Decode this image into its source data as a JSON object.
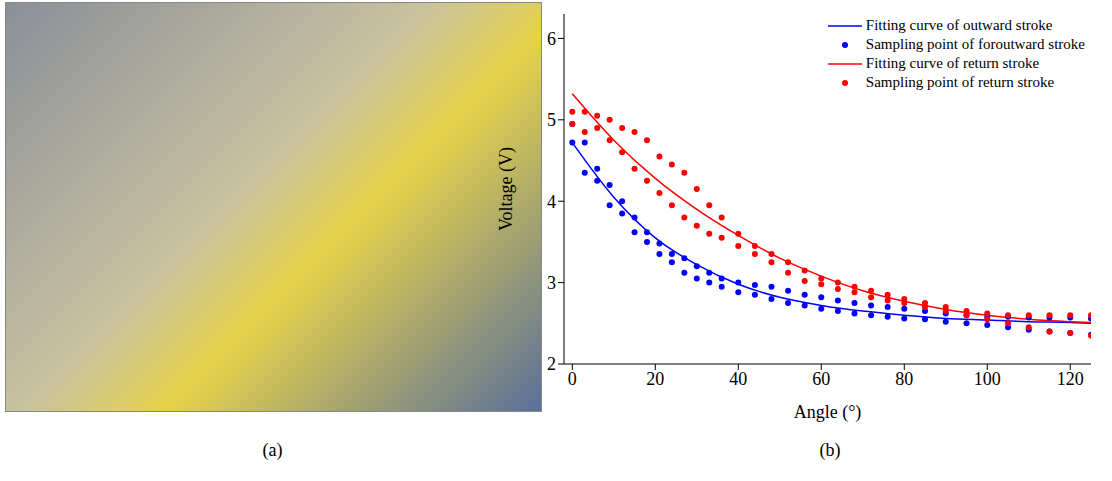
{
  "panel_labels": [
    "(a)",
    "(b)"
  ],
  "chart_data": {
    "type": "scatter",
    "x_label": "Angle (°)",
    "y_label": "Voltage (V)",
    "xlim": [
      -2,
      125
    ],
    "xticks": [
      0,
      20,
      40,
      60,
      80,
      100,
      120
    ],
    "ylim": [
      2,
      6.3
    ],
    "yticks": [
      2,
      3,
      4,
      5,
      6
    ],
    "grid": false,
    "legend": "upper right",
    "series": [
      {
        "name": "Fitting curve of outward stroke",
        "type": "line",
        "color": "#0000ff",
        "line_style": "solid",
        "x": [
          0,
          10,
          20,
          30,
          40,
          50,
          60,
          70,
          80,
          90,
          100,
          110,
          120,
          125
        ],
        "values": [
          4.72,
          4.05,
          3.55,
          3.22,
          2.98,
          2.82,
          2.72,
          2.65,
          2.6,
          2.56,
          2.54,
          2.52,
          2.51,
          2.5
        ]
      },
      {
        "name": "Sampling point of foroutward stroke",
        "type": "scatter",
        "color": "#0000ff",
        "marker": "circle",
        "x": [
          0,
          0,
          3,
          3,
          6,
          6,
          9,
          9,
          12,
          12,
          15,
          15,
          18,
          18,
          21,
          21,
          24,
          24,
          27,
          27,
          30,
          30,
          33,
          33,
          36,
          36,
          40,
          40,
          44,
          44,
          48,
          48,
          52,
          52,
          56,
          56,
          60,
          60,
          64,
          64,
          68,
          68,
          72,
          72,
          76,
          76,
          80,
          80,
          85,
          85,
          90,
          90,
          95,
          95,
          100,
          100,
          105,
          105,
          110,
          110,
          115,
          115,
          120,
          120,
          125,
          125
        ],
        "values": [
          4.95,
          4.72,
          4.72,
          4.35,
          4.4,
          4.25,
          4.2,
          3.95,
          4.0,
          3.85,
          3.8,
          3.62,
          3.62,
          3.5,
          3.48,
          3.35,
          3.35,
          3.25,
          3.3,
          3.12,
          3.2,
          3.05,
          3.12,
          3.0,
          3.05,
          2.95,
          3.0,
          2.88,
          2.97,
          2.85,
          2.95,
          2.8,
          2.9,
          2.75,
          2.85,
          2.72,
          2.82,
          2.68,
          2.78,
          2.65,
          2.75,
          2.62,
          2.72,
          2.6,
          2.7,
          2.58,
          2.68,
          2.56,
          2.65,
          2.55,
          2.62,
          2.52,
          2.6,
          2.5,
          2.58,
          2.48,
          2.58,
          2.45,
          2.57,
          2.42,
          2.57,
          2.4,
          2.57,
          2.38,
          2.56,
          2.36
        ]
      },
      {
        "name": "Fitting curve of return stroke",
        "type": "line",
        "color": "#ff0000",
        "line_style": "solid",
        "x": [
          0,
          10,
          20,
          30,
          40,
          50,
          60,
          70,
          80,
          90,
          100,
          110,
          120,
          125
        ],
        "values": [
          5.32,
          4.75,
          4.28,
          3.9,
          3.58,
          3.3,
          3.08,
          2.9,
          2.77,
          2.67,
          2.6,
          2.55,
          2.52,
          2.51
        ]
      },
      {
        "name": "Sampling point of return stroke",
        "type": "scatter",
        "color": "#ff0000",
        "marker": "circle",
        "x": [
          0,
          0,
          3,
          3,
          6,
          6,
          9,
          9,
          12,
          12,
          15,
          15,
          18,
          18,
          21,
          21,
          24,
          24,
          27,
          27,
          30,
          30,
          33,
          33,
          36,
          36,
          40,
          40,
          44,
          44,
          48,
          48,
          52,
          52,
          56,
          56,
          60,
          60,
          64,
          64,
          68,
          68,
          72,
          72,
          76,
          76,
          80,
          80,
          85,
          85,
          90,
          90,
          95,
          95,
          100,
          100,
          105,
          105,
          110,
          110,
          115,
          115,
          120,
          120,
          125,
          125
        ],
        "values": [
          5.1,
          4.95,
          5.1,
          4.85,
          5.05,
          4.9,
          5.0,
          4.75,
          4.9,
          4.6,
          4.85,
          4.4,
          4.75,
          4.25,
          4.55,
          4.1,
          4.45,
          3.95,
          4.35,
          3.8,
          4.15,
          3.7,
          3.95,
          3.6,
          3.8,
          3.55,
          3.6,
          3.45,
          3.45,
          3.35,
          3.35,
          3.25,
          3.25,
          3.12,
          3.15,
          3.02,
          3.05,
          2.98,
          3.0,
          2.92,
          2.95,
          2.88,
          2.9,
          2.82,
          2.85,
          2.78,
          2.8,
          2.75,
          2.75,
          2.7,
          2.7,
          2.65,
          2.65,
          2.6,
          2.62,
          2.55,
          2.6,
          2.5,
          2.6,
          2.45,
          2.6,
          2.4,
          2.6,
          2.38,
          2.6,
          2.35
        ]
      }
    ]
  }
}
